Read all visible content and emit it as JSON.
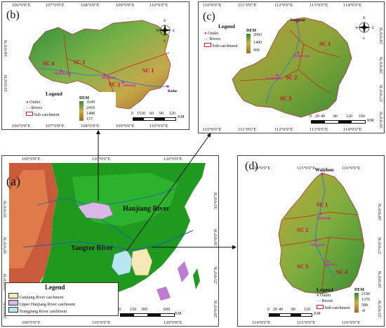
{
  "panel_b": {
    "label": "(b)",
    "lon_ticks": [
      "106°0'0\"E",
      "107°0'0\"E",
      "108°0'0\"E",
      "109°0'0\"E",
      "110°0'0\"E"
    ],
    "lat_ticks": [
      "34°0'0\"N",
      "33°0'0\"N"
    ],
    "subcatchments": [
      "SC 1",
      "SC 2",
      "SC 3",
      "SC 4"
    ],
    "sites": [
      "Hanzhong",
      "Shiquan",
      "Ankang",
      "Baihe"
    ],
    "legend": {
      "title": "Legend",
      "outlet": "Outlet",
      "rivers": "Rivers",
      "sub": "Sub-catchment",
      "dem_title": "DEM",
      "dem_values": [
        "3549",
        "2418",
        "1488",
        "157"
      ]
    },
    "scale": [
      "0",
      "15",
      "30",
      "60",
      "90",
      "120",
      "KM"
    ],
    "compass": {
      "n": "N",
      "s": "S",
      "e": "E",
      "w": "W"
    }
  },
  "panel_c": {
    "label": "(c)",
    "lon_ticks": [
      "110°0'0\"E",
      "111°0'0\"E",
      "112°0'0\"E",
      "113°0'0\"E",
      "114°0'0\"E"
    ],
    "lat_ticks": [
      "29°0'0\"N",
      "28°0'0\"N",
      "27°0'0\"N",
      "26°0'0\"N"
    ],
    "subcatchments": [
      "SC 1",
      "SC 2",
      "SC 3"
    ],
    "sites": [
      "Xiangtan",
      "Hengyang",
      "Lushuian"
    ],
    "legend": {
      "title": "Legend",
      "outlet": "Outlet",
      "rivers": "Rivers",
      "sub": "Sub-catchment",
      "dem_title": "DEM",
      "dem_values": [
        "2093",
        "1400",
        "600"
      ]
    },
    "scale": [
      "0",
      "20",
      "40",
      "80",
      "120",
      "160",
      "KM"
    ],
    "compass": {
      "n": "N",
      "s": "S",
      "e": "E",
      "w": "W"
    }
  },
  "panel_a": {
    "label": "(a)",
    "lon_ticks_top": [
      "100°0'0\"E",
      "110°0'0\"E",
      "120°0'0\"E"
    ],
    "lon_ticks_bottom": [
      "100°0'0\"E",
      "110°0'0\"E",
      "120°0'0\"E"
    ],
    "lat_ticks_left": [
      "35°0'0\"N",
      "30°0'0\"N",
      "25°0'0\"N",
      "20°0'0\"N"
    ],
    "lat_ticks_right": [
      "35°0'0\"N",
      "30°0'0\"N",
      "25°0'0\"N",
      "20°0'0\"N"
    ],
    "hanjiang": "Hanjiang River",
    "yangtze": "Yangtze River",
    "legend": {
      "title": "Legend",
      "items": [
        "Ganjiang River catchment",
        "Upper Hanjiang River catchment",
        "Xiangjiang River catchment"
      ]
    },
    "scale": [
      "0",
      "150",
      "300",
      "600",
      "KM"
    ]
  },
  "panel_d": {
    "label": "(d)",
    "lon_ticks_top": [
      "114°0'0\"E",
      "115°0'0\"E",
      "116°0'0\"E"
    ],
    "lon_ticks_bottom": [
      "114°0'0\"E",
      "115°0'0\"E",
      "116°0'0\"E"
    ],
    "lat_ticks_right": [
      "28°0'0\"N",
      "27°0'0\"N",
      "26°0'0\"N",
      "25°0'0\"N"
    ],
    "subcatchments": [
      "SC 1",
      "SC 2",
      "SC 3",
      "SC 4"
    ],
    "sites": [
      "Waizhou",
      "Xiajiang",
      "Dongbei",
      "Xiashan"
    ],
    "legend": {
      "title": "Legend",
      "outlet": "Outlet",
      "rivers": "Rivers",
      "sub": "Sub-catchment",
      "dem_title": "DEM",
      "dem_values": [
        "2108",
        "1370",
        "589",
        "-8"
      ]
    },
    "scale": [
      "0",
      "20",
      "40",
      "80",
      "120",
      "KM"
    ]
  },
  "colors": {
    "dem_high": "#2e8b2e",
    "dem_mid": "#c9b04a",
    "dem_low": "#a86a14",
    "river": "#2f7fbf",
    "subcatch": "#d02020",
    "ganjiang": "#f3e9b4",
    "hanjiang": "#d9b8e8",
    "xiangjiang": "#b8e6f0",
    "land": "#1f9a1f",
    "sea": "#ffffff"
  }
}
